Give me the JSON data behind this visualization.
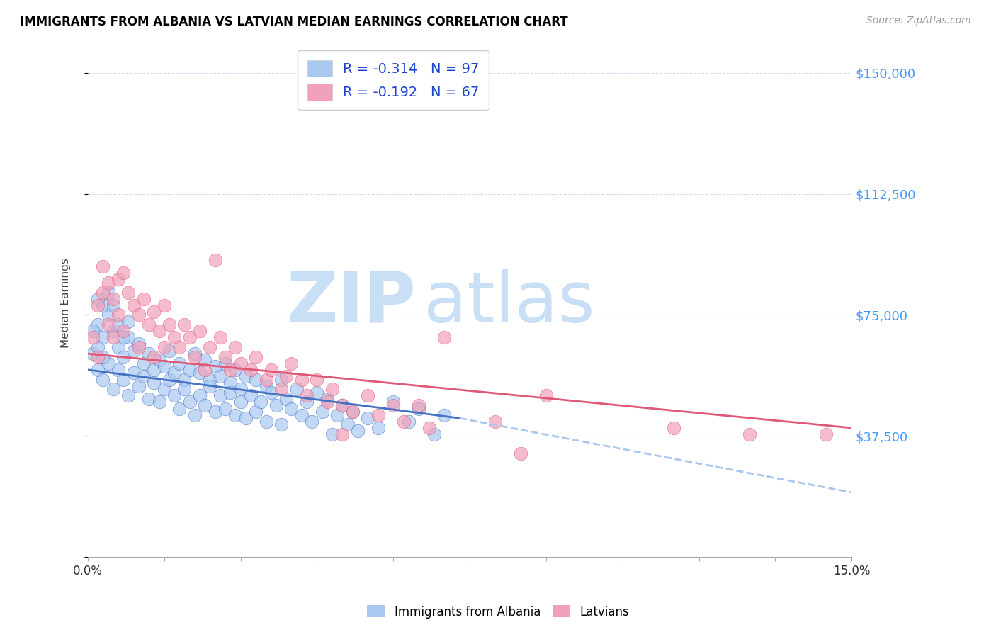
{
  "title": "IMMIGRANTS FROM ALBANIA VS LATVIAN MEDIAN EARNINGS CORRELATION CHART",
  "source": "Source: ZipAtlas.com",
  "ylabel": "Median Earnings",
  "y_ticks": [
    0,
    37500,
    75000,
    112500,
    150000
  ],
  "y_tick_labels": [
    "",
    "$37,500",
    "$75,000",
    "$112,500",
    "$150,000"
  ],
  "xlim": [
    0.0,
    0.15
  ],
  "ylim": [
    0,
    157500
  ],
  "color_albania": "#a8c8f0",
  "color_latvian": "#f0a0b8",
  "color_albania_line": "#4472c4",
  "color_latvian_line": "#e05878",
  "color_dashed": "#a8c8f0",
  "albania_line_start": 0.0,
  "albania_line_end": 0.073,
  "albania_line_y0": 58000,
  "albania_line_y1": 43000,
  "latvian_line_start": 0.0,
  "latvian_line_end": 0.15,
  "latvian_line_y0": 63000,
  "latvian_line_y1": 40000,
  "dashed_line_start": 0.073,
  "dashed_line_end": 0.15,
  "dashed_line_y0": 43000,
  "dashed_line_y1": 20000,
  "albania_scatter": [
    [
      0.001,
      63000
    ],
    [
      0.002,
      72000
    ],
    [
      0.002,
      58000
    ],
    [
      0.003,
      68000
    ],
    [
      0.003,
      55000
    ],
    [
      0.004,
      75000
    ],
    [
      0.004,
      60000
    ],
    [
      0.005,
      70000
    ],
    [
      0.005,
      52000
    ],
    [
      0.006,
      65000
    ],
    [
      0.006,
      58000
    ],
    [
      0.007,
      62000
    ],
    [
      0.007,
      55000
    ],
    [
      0.008,
      68000
    ],
    [
      0.008,
      50000
    ],
    [
      0.009,
      64000
    ],
    [
      0.009,
      57000
    ],
    [
      0.01,
      66000
    ],
    [
      0.01,
      53000
    ],
    [
      0.011,
      60000
    ],
    [
      0.011,
      56000
    ],
    [
      0.012,
      63000
    ],
    [
      0.012,
      49000
    ],
    [
      0.013,
      58000
    ],
    [
      0.013,
      54000
    ],
    [
      0.014,
      61000
    ],
    [
      0.014,
      48000
    ],
    [
      0.015,
      59000
    ],
    [
      0.015,
      52000
    ],
    [
      0.016,
      64000
    ],
    [
      0.016,
      55000
    ],
    [
      0.017,
      57000
    ],
    [
      0.017,
      50000
    ],
    [
      0.018,
      60000
    ],
    [
      0.018,
      46000
    ],
    [
      0.019,
      55000
    ],
    [
      0.019,
      52000
    ],
    [
      0.02,
      58000
    ],
    [
      0.02,
      48000
    ],
    [
      0.021,
      63000
    ],
    [
      0.021,
      44000
    ],
    [
      0.022,
      57000
    ],
    [
      0.022,
      50000
    ],
    [
      0.023,
      61000
    ],
    [
      0.023,
      47000
    ],
    [
      0.024,
      55000
    ],
    [
      0.024,
      53000
    ],
    [
      0.025,
      59000
    ],
    [
      0.025,
      45000
    ],
    [
      0.026,
      56000
    ],
    [
      0.026,
      50000
    ],
    [
      0.027,
      60000
    ],
    [
      0.027,
      46000
    ],
    [
      0.028,
      54000
    ],
    [
      0.028,
      51000
    ],
    [
      0.029,
      58000
    ],
    [
      0.029,
      44000
    ],
    [
      0.03,
      52000
    ],
    [
      0.03,
      48000
    ],
    [
      0.031,
      56000
    ],
    [
      0.031,
      43000
    ],
    [
      0.032,
      50000
    ],
    [
      0.033,
      55000
    ],
    [
      0.033,
      45000
    ],
    [
      0.034,
      48000
    ],
    [
      0.035,
      53000
    ],
    [
      0.035,
      42000
    ],
    [
      0.036,
      51000
    ],
    [
      0.037,
      47000
    ],
    [
      0.038,
      55000
    ],
    [
      0.038,
      41000
    ],
    [
      0.039,
      49000
    ],
    [
      0.04,
      46000
    ],
    [
      0.041,
      52000
    ],
    [
      0.042,
      44000
    ],
    [
      0.043,
      48000
    ],
    [
      0.044,
      42000
    ],
    [
      0.045,
      51000
    ],
    [
      0.046,
      45000
    ],
    [
      0.047,
      49000
    ],
    [
      0.048,
      38000
    ],
    [
      0.049,
      44000
    ],
    [
      0.05,
      47000
    ],
    [
      0.051,
      41000
    ],
    [
      0.052,
      45000
    ],
    [
      0.053,
      39000
    ],
    [
      0.055,
      43000
    ],
    [
      0.057,
      40000
    ],
    [
      0.06,
      48000
    ],
    [
      0.063,
      42000
    ],
    [
      0.065,
      46000
    ],
    [
      0.068,
      38000
    ],
    [
      0.07,
      44000
    ],
    [
      0.003,
      78000
    ],
    [
      0.002,
      80000
    ],
    [
      0.004,
      82000
    ],
    [
      0.001,
      70000
    ],
    [
      0.005,
      78000
    ],
    [
      0.006,
      72000
    ],
    [
      0.007,
      68000
    ],
    [
      0.002,
      65000
    ],
    [
      0.003,
      62000
    ],
    [
      0.008,
      73000
    ]
  ],
  "latvian_scatter": [
    [
      0.001,
      68000
    ],
    [
      0.002,
      78000
    ],
    [
      0.002,
      62000
    ],
    [
      0.003,
      90000
    ],
    [
      0.003,
      82000
    ],
    [
      0.004,
      85000
    ],
    [
      0.004,
      72000
    ],
    [
      0.005,
      80000
    ],
    [
      0.005,
      68000
    ],
    [
      0.006,
      86000
    ],
    [
      0.006,
      75000
    ],
    [
      0.007,
      88000
    ],
    [
      0.007,
      70000
    ],
    [
      0.008,
      82000
    ],
    [
      0.009,
      78000
    ],
    [
      0.01,
      75000
    ],
    [
      0.01,
      65000
    ],
    [
      0.011,
      80000
    ],
    [
      0.012,
      72000
    ],
    [
      0.013,
      76000
    ],
    [
      0.013,
      62000
    ],
    [
      0.014,
      70000
    ],
    [
      0.015,
      78000
    ],
    [
      0.015,
      65000
    ],
    [
      0.016,
      72000
    ],
    [
      0.017,
      68000
    ],
    [
      0.018,
      65000
    ],
    [
      0.019,
      72000
    ],
    [
      0.02,
      68000
    ],
    [
      0.021,
      62000
    ],
    [
      0.022,
      70000
    ],
    [
      0.023,
      58000
    ],
    [
      0.024,
      65000
    ],
    [
      0.025,
      92000
    ],
    [
      0.026,
      68000
    ],
    [
      0.027,
      62000
    ],
    [
      0.028,
      58000
    ],
    [
      0.029,
      65000
    ],
    [
      0.03,
      60000
    ],
    [
      0.032,
      58000
    ],
    [
      0.033,
      62000
    ],
    [
      0.035,
      55000
    ],
    [
      0.036,
      58000
    ],
    [
      0.038,
      52000
    ],
    [
      0.039,
      56000
    ],
    [
      0.04,
      60000
    ],
    [
      0.042,
      55000
    ],
    [
      0.043,
      50000
    ],
    [
      0.045,
      55000
    ],
    [
      0.047,
      48000
    ],
    [
      0.048,
      52000
    ],
    [
      0.05,
      47000
    ],
    [
      0.05,
      38000
    ],
    [
      0.052,
      45000
    ],
    [
      0.055,
      50000
    ],
    [
      0.057,
      44000
    ],
    [
      0.06,
      47000
    ],
    [
      0.062,
      42000
    ],
    [
      0.065,
      47000
    ],
    [
      0.067,
      40000
    ],
    [
      0.07,
      68000
    ],
    [
      0.08,
      42000
    ],
    [
      0.085,
      32000
    ],
    [
      0.09,
      50000
    ],
    [
      0.115,
      40000
    ],
    [
      0.13,
      38000
    ],
    [
      0.145,
      38000
    ]
  ]
}
